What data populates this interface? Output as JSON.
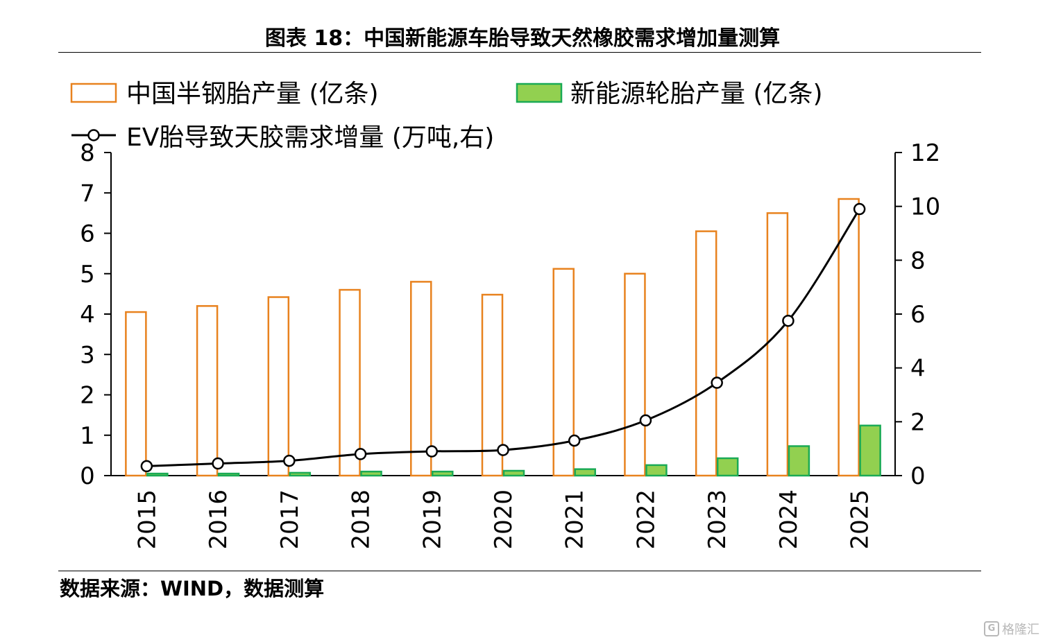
{
  "title": "图表 18：中国新能源车胎导致天然橡胶需求增加量测算",
  "source": "数据来源：WIND，数据测算",
  "watermark": {
    "text": "格隆汇",
    "logo_letter": "G"
  },
  "colors": {
    "bar1_stroke": "#E8821E",
    "bar1_fill": "#FFFFFF",
    "bar2_stroke": "#1AAA55",
    "bar2_fill": "#92D050",
    "line": "#000000"
  },
  "chart_data": {
    "type": "bar",
    "categories": [
      "2015",
      "2016",
      "2017",
      "2018",
      "2019",
      "2020",
      "2021",
      "2022",
      "2023",
      "2024",
      "2025"
    ],
    "series": [
      {
        "name": "中国半钢胎产量 (亿条)",
        "type": "bar",
        "axis": "left",
        "values": [
          4.05,
          4.2,
          4.42,
          4.6,
          4.8,
          4.48,
          5.12,
          5.0,
          6.05,
          6.5,
          6.85
        ]
      },
      {
        "name": "新能源轮胎产量 (亿条)",
        "type": "bar",
        "axis": "left",
        "values": [
          0.05,
          0.05,
          0.07,
          0.1,
          0.1,
          0.12,
          0.16,
          0.26,
          0.43,
          0.73,
          1.24
        ]
      },
      {
        "name": "EV胎导致天胶需求增量 (万吨,右)",
        "type": "line",
        "axis": "right",
        "values": [
          0.35,
          0.45,
          0.55,
          0.8,
          0.9,
          0.95,
          1.3,
          2.05,
          3.45,
          5.75,
          9.9
        ]
      }
    ],
    "left_axis": {
      "ylim": [
        0,
        8
      ],
      "ticks": [
        0,
        1,
        2,
        3,
        4,
        5,
        6,
        7,
        8
      ]
    },
    "right_axis": {
      "ylim": [
        0,
        12
      ],
      "ticks": [
        0,
        2,
        4,
        6,
        8,
        10,
        12
      ]
    },
    "grid": false,
    "legend_position": "top-left"
  }
}
